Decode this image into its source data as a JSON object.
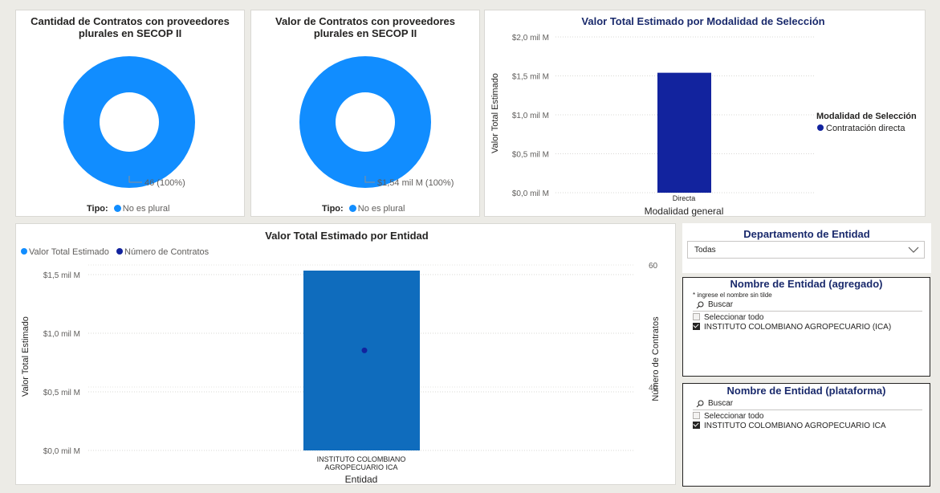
{
  "colors": {
    "accent_light": "#118dff",
    "navy": "#12239e",
    "bar_blue": "#0f6cbd",
    "title_navy": "#1a2a6c"
  },
  "donut1": {
    "title": "Cantidad de Contratos con proveedores plurales en SECOP II",
    "data_label": "46 (100%)",
    "legend_title": "Tipo:",
    "legend_item": "No es plural"
  },
  "donut2": {
    "title": "Valor de Contratos con proveedores plurales en SECOP II",
    "data_label": "$1,54 mil M (100%)",
    "legend_title": "Tipo:",
    "legend_item": "No es plural"
  },
  "chart1": {
    "title": "Valor Total Estimado por Modalidad de Selección",
    "ylabel": "Valor Total Estimado",
    "xlabel": "Modalidad general",
    "yticks": [
      "$2,0 mil M",
      "$1,5 mil M",
      "$1,0 mil M",
      "$0,5 mil M",
      "$0,0 mil M"
    ],
    "legend_title": "Modalidad de Selección",
    "legend_item": "Contratación directa"
  },
  "chart2": {
    "title": "Valor Total Estimado por Entidad",
    "legend": [
      "Valor Total Estimado",
      "Número de Contratos"
    ],
    "ylabel": "Valor Total Estimado",
    "y2label": "Número de Contratos",
    "xlabel": "Entidad",
    "yticks": [
      "$1,5 mil M",
      "$1,0 mil M",
      "$0,5 mil M",
      "$0,0 mil M"
    ],
    "y2ticks": [
      "60",
      "40"
    ],
    "category_line1": "INSTITUTO COLOMBIANO",
    "category_line2": "AGROPECUARIO ICA"
  },
  "chart_data": [
    {
      "type": "pie",
      "title": "Cantidad de Contratos con proveedores plurales en SECOP II",
      "categories": [
        "No es plural"
      ],
      "values": [
        46
      ],
      "donut": true
    },
    {
      "type": "pie",
      "title": "Valor de Contratos con proveedores plurales en SECOP II",
      "categories": [
        "No es plural"
      ],
      "values": [
        1.54
      ],
      "unit": "mil M",
      "donut": true
    },
    {
      "type": "bar",
      "title": "Valor Total Estimado por Modalidad de Selección",
      "categories": [
        "Directa"
      ],
      "series": [
        {
          "name": "Contratación directa",
          "values": [
            1.54
          ]
        }
      ],
      "xlabel": "Modalidad general",
      "ylabel": "Valor Total Estimado",
      "ylim": [
        0,
        2.0
      ],
      "legend": "right"
    },
    {
      "type": "bar",
      "title": "Valor Total Estimado por Entidad",
      "categories": [
        "INSTITUTO COLOMBIANO AGROPECUARIO ICA"
      ],
      "series": [
        {
          "name": "Valor Total Estimado",
          "values": [
            1.54
          ]
        },
        {
          "name": "Número de Contratos",
          "values": [
            46
          ],
          "axis": "secondary",
          "type": "line"
        }
      ],
      "xlabel": "Entidad",
      "ylabel": "Valor Total Estimado",
      "y2label": "Número de Contratos",
      "ylim": [
        0,
        1.5
      ],
      "y2lim": [
        40,
        60
      ],
      "legend": "top-left"
    }
  ],
  "slicer1": {
    "title": "Departamento de Entidad",
    "value": "Todas"
  },
  "slicer2": {
    "title": "Nombre de Entidad (agregado)",
    "hint": "* ingrese el nombre sin tilde",
    "search_placeholder": "Buscar",
    "select_all": "Seleccionar todo",
    "item": "INSTITUTO COLOMBIANO AGROPECUARIO (ICA)"
  },
  "slicer3": {
    "title": "Nombre de Entidad (plataforma)",
    "search_placeholder": "Buscar",
    "select_all": "Seleccionar todo",
    "item": "INSTITUTO COLOMBIANO AGROPECUARIO ICA"
  }
}
